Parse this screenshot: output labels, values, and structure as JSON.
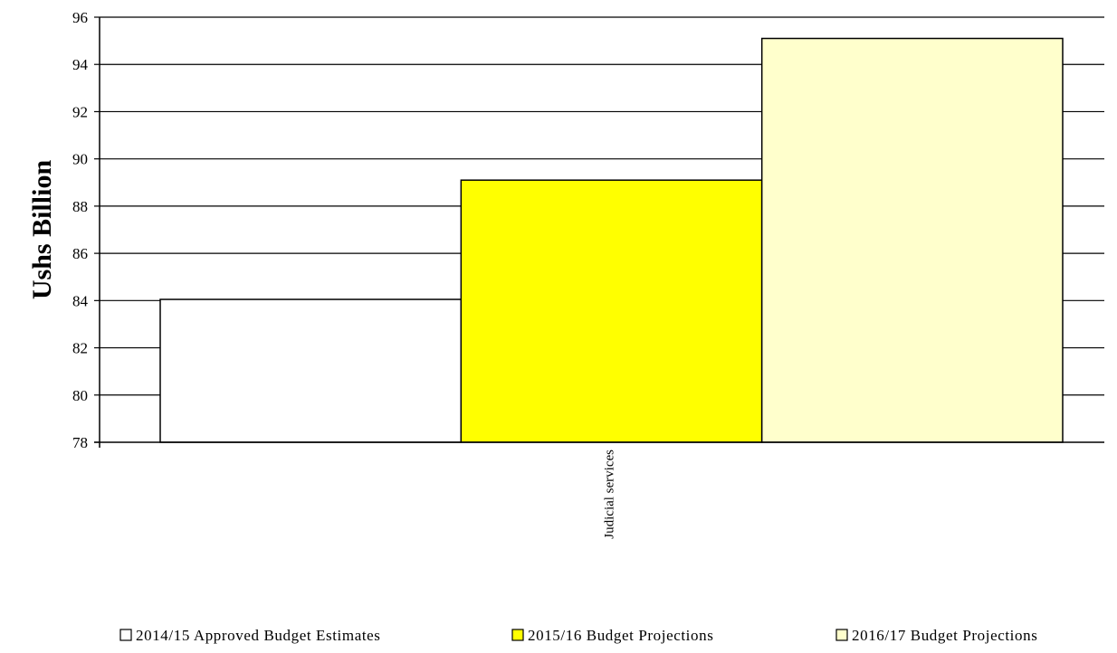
{
  "chart_data": {
    "type": "bar",
    "title": "",
    "xlabel": "",
    "ylabel": "Ushs Billion",
    "categories": [
      "Judicial services"
    ],
    "series": [
      {
        "name": "2014/15 Approved Budget Estimates",
        "values": [
          84.05
        ],
        "color": "#ffffff"
      },
      {
        "name": "2015/16 Budget Projections",
        "values": [
          89.1
        ],
        "color": "#ffff00"
      },
      {
        "name": "2016/17 Budget Projections",
        "values": [
          95.1
        ],
        "color": "#ffffcc"
      }
    ],
    "ylim": [
      78,
      96
    ],
    "yticks": [
      78,
      80,
      82,
      84,
      86,
      88,
      90,
      92,
      94,
      96
    ],
    "grid": true,
    "legend_position": "bottom"
  },
  "colors": {
    "axis": "#000000",
    "grid": "#000000",
    "bar_stroke": "#000000",
    "background": "#ffffff"
  }
}
